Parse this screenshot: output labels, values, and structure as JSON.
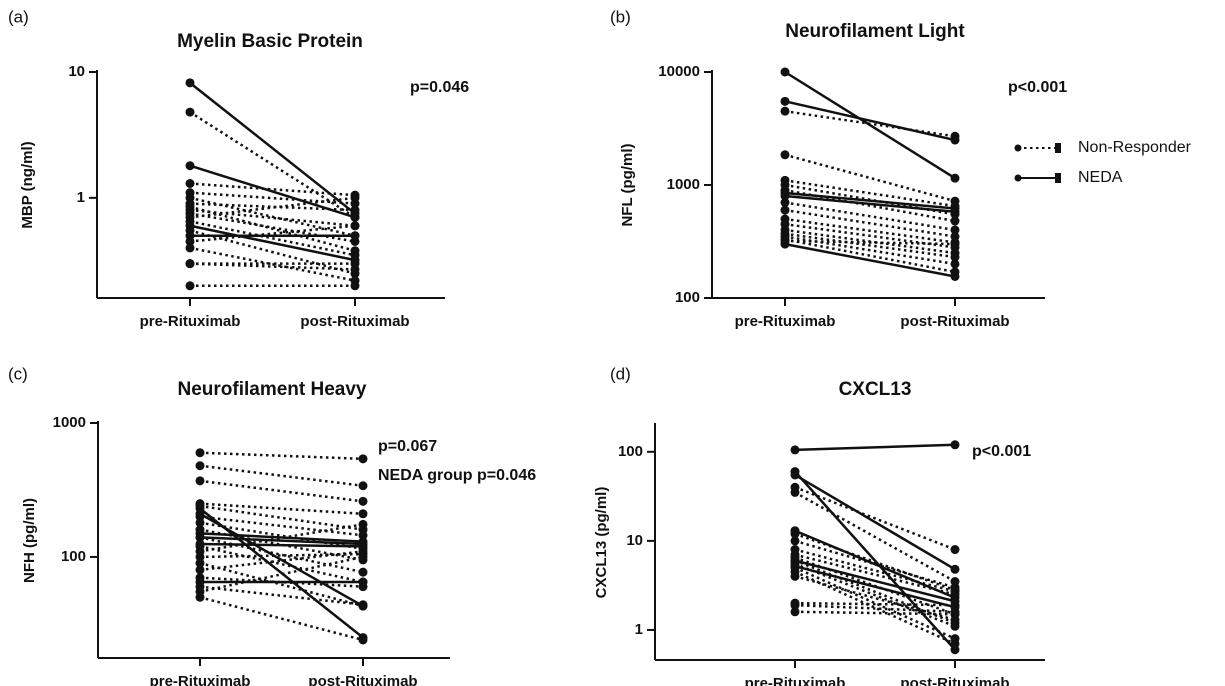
{
  "chart_data": [
    {
      "type": "line",
      "panel_label": "(a)",
      "title": "Myelin Basic Protein",
      "y_label": "MBP (ng/ml)",
      "categories": [
        "pre-Rituximab",
        "post-Rituximab"
      ],
      "log_scale": true,
      "ylim": [
        0.16,
        10
      ],
      "yticks": [
        1,
        10
      ],
      "annotations": [
        "p=0.046"
      ],
      "series": [
        {
          "name": "Non-Responder",
          "color": "#111111",
          "line_style": "dotted",
          "values": [
            [
              4.8,
              0.7
            ],
            [
              1.3,
              1.05
            ],
            [
              1.1,
              0.9
            ],
            [
              0.9,
              0.8
            ],
            [
              0.8,
              0.6
            ],
            [
              0.75,
              0.45
            ],
            [
              0.7,
              1.0
            ],
            [
              0.65,
              0.35
            ],
            [
              0.55,
              0.25
            ],
            [
              0.45,
              0.6
            ],
            [
              0.4,
              0.22
            ],
            [
              0.3,
              0.3
            ],
            [
              0.3,
              0.27
            ],
            [
              0.2,
              0.2
            ],
            [
              1.0,
              0.5
            ],
            [
              0.85,
              0.38
            ]
          ]
        },
        {
          "name": "NEDA",
          "color": "#111111",
          "line_style": "solid",
          "values": [
            [
              8.2,
              0.75
            ],
            [
              1.8,
              0.7
            ],
            [
              0.6,
              0.32
            ],
            [
              0.5,
              0.5
            ]
          ]
        }
      ]
    },
    {
      "type": "line",
      "panel_label": "(b)",
      "title": "Neurofilament Light",
      "y_label": "NFL (pg/ml)",
      "categories": [
        "pre-Rituximab",
        "post-Rituximab"
      ],
      "log_scale": true,
      "ylim": [
        100,
        10000
      ],
      "yticks": [
        100,
        1000,
        10000
      ],
      "annotations": [
        "p<0.001"
      ],
      "legend": "right",
      "series": [
        {
          "name": "Non-Responder",
          "color": "#111111",
          "line_style": "dotted",
          "values": [
            [
              4500,
              2700
            ],
            [
              1850,
              720
            ],
            [
              1100,
              650
            ],
            [
              1000,
              550
            ],
            [
              900,
              480
            ],
            [
              700,
              400
            ],
            [
              600,
              350
            ],
            [
              500,
              310
            ],
            [
              450,
              280
            ],
            [
              400,
              250
            ],
            [
              370,
              230
            ],
            [
              350,
              200
            ],
            [
              330,
              170
            ],
            [
              320,
              300
            ]
          ]
        },
        {
          "name": "NEDA",
          "color": "#111111",
          "line_style": "solid",
          "values": [
            [
              10000,
              1150
            ],
            [
              5500,
              2500
            ],
            [
              850,
              620
            ],
            [
              800,
              580
            ],
            [
              300,
              155
            ]
          ]
        }
      ]
    },
    {
      "type": "line",
      "panel_label": "(c)",
      "title": "Neurofilament Heavy",
      "y_label": "NFH (pg/ml)",
      "categories": [
        "pre-Rituximab",
        "post-Rituximab"
      ],
      "log_scale": true,
      "ylim": [
        17.6,
        1000
      ],
      "yticks": [
        100,
        1000
      ],
      "annotations": [
        "p=0.067",
        "NEDA group p=0.046"
      ],
      "series": [
        {
          "name": "Non-Responder",
          "color": "#111111",
          "line_style": "dotted",
          "values": [
            [
              600,
              540
            ],
            [
              480,
              340
            ],
            [
              370,
              260
            ],
            [
              250,
              210
            ],
            [
              240,
              160
            ],
            [
              200,
              145
            ],
            [
              180,
              115
            ],
            [
              160,
              95
            ],
            [
              140,
              77
            ],
            [
              120,
              65
            ],
            [
              110,
              175
            ],
            [
              100,
              105
            ],
            [
              90,
              43
            ],
            [
              80,
              110
            ],
            [
              70,
              60
            ],
            [
              60,
              44
            ],
            [
              50,
              24
            ],
            [
              55,
              100
            ]
          ]
        },
        {
          "name": "NEDA",
          "color": "#111111",
          "line_style": "solid",
          "values": [
            [
              230,
              25
            ],
            [
              150,
              130
            ],
            [
              140,
              125
            ],
            [
              210,
              43
            ],
            [
              65,
              65
            ],
            [
              125,
              120
            ]
          ]
        }
      ]
    },
    {
      "type": "line",
      "panel_label": "(d)",
      "title": "CXCL13",
      "y_label": "CXCL13 (pg/ml)",
      "categories": [
        "pre-Rituximab",
        "post-Rituximab"
      ],
      "log_scale": true,
      "ylim": [
        0.46,
        200
      ],
      "yticks": [
        1,
        10,
        100
      ],
      "annotations": [
        "p<0.001"
      ],
      "series": [
        {
          "name": "Non-Responder",
          "color": "#111111",
          "line_style": "dotted",
          "values": [
            [
              40,
              8
            ],
            [
              35,
              3.5
            ],
            [
              10,
              3
            ],
            [
              8,
              2.7
            ],
            [
              7,
              2.5
            ],
            [
              6.5,
              1.5
            ],
            [
              6,
              1.2
            ],
            [
              5.5,
              1.1
            ],
            [
              5,
              0.8
            ],
            [
              4.5,
              0.7
            ],
            [
              4,
              1.3
            ],
            [
              2,
              1.9
            ],
            [
              1.9,
              1.6
            ],
            [
              1.6,
              1.5
            ],
            [
              12,
              2.8
            ]
          ]
        },
        {
          "name": "NEDA",
          "color": "#111111",
          "line_style": "solid",
          "values": [
            [
              105,
              120
            ],
            [
              60,
              0.6
            ],
            [
              55,
              4.8
            ],
            [
              13,
              2.3
            ],
            [
              6,
              2.1
            ],
            [
              5.2,
              1.8
            ]
          ]
        }
      ]
    }
  ]
}
